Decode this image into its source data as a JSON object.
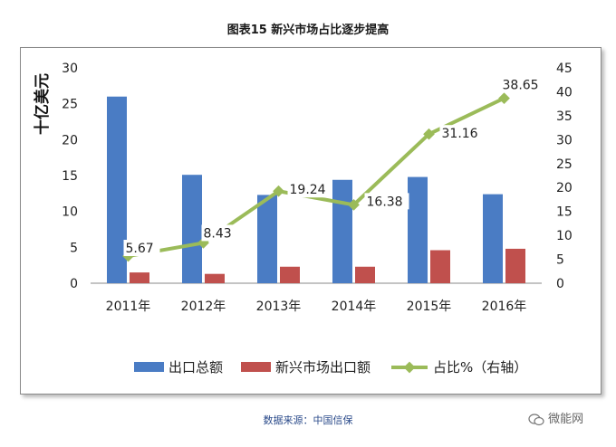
{
  "page_title": "图表15  新兴市场占比逐步提高",
  "source": "数据来源：中国信保",
  "watermark": "微能网",
  "chart_data": {
    "type": "bar",
    "categories": [
      "2011年",
      "2012年",
      "2013年",
      "2014年",
      "2015年",
      "2016年"
    ],
    "series": [
      {
        "name": "出口总额",
        "kind": "bar",
        "axis": "left",
        "color": "#4a7cc4",
        "values": [
          26.0,
          15.1,
          12.3,
          14.4,
          14.8,
          12.4
        ]
      },
      {
        "name": "新兴市场出口额",
        "kind": "bar",
        "axis": "left",
        "color": "#c0504d",
        "values": [
          1.5,
          1.3,
          2.3,
          2.3,
          4.6,
          4.8
        ]
      },
      {
        "name": "占比%（右轴）",
        "kind": "line",
        "axis": "right",
        "color": "#9bbb59",
        "values": [
          5.67,
          8.43,
          19.24,
          16.38,
          31.16,
          38.65
        ],
        "labels": [
          "5.67",
          "8.43",
          "19.24",
          "16.38",
          "31.16",
          "38.65"
        ]
      }
    ],
    "ylabel": "十亿美元",
    "ylim": [
      0,
      30
    ],
    "yticks": [
      "0",
      "5",
      "10",
      "15",
      "20",
      "25",
      "30"
    ],
    "y2lim": [
      0,
      45
    ],
    "y2ticks": [
      "0",
      "5",
      "10",
      "15",
      "20",
      "25",
      "30",
      "35",
      "40",
      "45"
    ],
    "legend_position": "bottom",
    "grid": false
  }
}
